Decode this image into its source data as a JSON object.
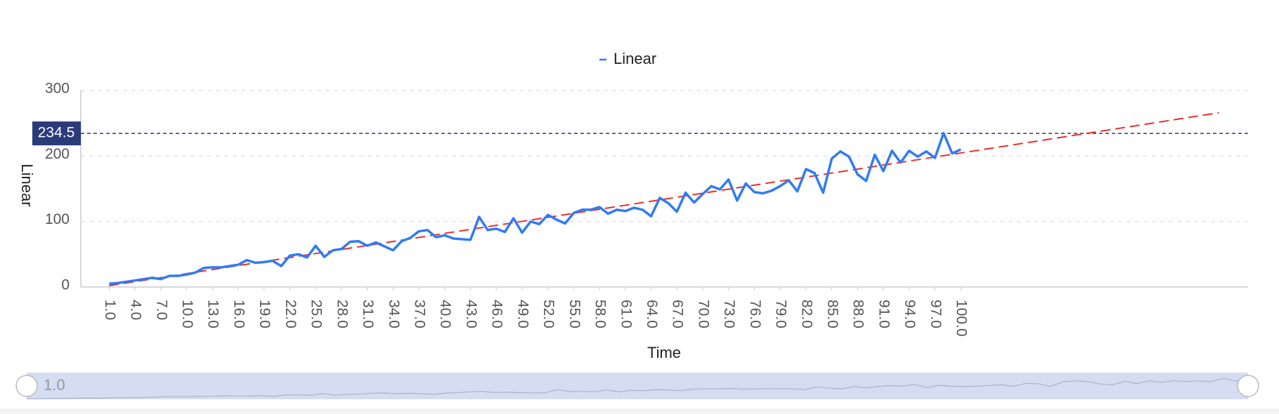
{
  "chart_data": {
    "type": "line",
    "x_label": "Time",
    "y_label": "Linear",
    "x": [
      1,
      2,
      3,
      4,
      5,
      6,
      7,
      8,
      9,
      10,
      11,
      12,
      13,
      14,
      15,
      16,
      17,
      18,
      19,
      20,
      21,
      22,
      23,
      24,
      25,
      26,
      27,
      28,
      29,
      30,
      31,
      32,
      33,
      34,
      35,
      36,
      37,
      38,
      39,
      40,
      41,
      42,
      43,
      44,
      45,
      46,
      47,
      48,
      49,
      50,
      51,
      52,
      53,
      54,
      55,
      56,
      57,
      58,
      59,
      60,
      61,
      62,
      63,
      64,
      65,
      66,
      67,
      68,
      69,
      70,
      71,
      72,
      73,
      74,
      75,
      76,
      77,
      78,
      79,
      80,
      81,
      82,
      83,
      84,
      85,
      86,
      87,
      88,
      89,
      90,
      91,
      92,
      93,
      94,
      95,
      96,
      97,
      98,
      99,
      100
    ],
    "series": [
      {
        "name": "Linear",
        "color": "#2f7bf5",
        "values": [
          5,
          6,
          8,
          10,
          12,
          14,
          12,
          17,
          17,
          19,
          22,
          29,
          30,
          30,
          32,
          34,
          41,
          37,
          38,
          40,
          32,
          48,
          50,
          45,
          63,
          46,
          56,
          58,
          69,
          70,
          63,
          68,
          62,
          56,
          70,
          75,
          85,
          87,
          76,
          79,
          74,
          73,
          72,
          107,
          87,
          89,
          84,
          105,
          83,
          100,
          96,
          110,
          103,
          97,
          113,
          118,
          118,
          122,
          112,
          118,
          116,
          121,
          118,
          108,
          136,
          128,
          115,
          144,
          129,
          142,
          154,
          149,
          164,
          132,
          158,
          145,
          143,
          147,
          154,
          163,
          146,
          180,
          174,
          144,
          196,
          207,
          199,
          172,
          162,
          202,
          177,
          208,
          190,
          208,
          199,
          207,
          197,
          235,
          204,
          210
        ]
      }
    ],
    "trendline": {
      "x": [
        1,
        130
      ],
      "values": [
        2,
        266
      ],
      "color": "#e8312a",
      "dashed": true
    },
    "markline": {
      "value": 234.5,
      "color": "#2b3a7a"
    },
    "xlim": [
      -2.3,
      133.4
    ],
    "xticks": [
      {
        "value": 1,
        "label": "1.0"
      },
      {
        "value": 4,
        "label": "4.0"
      },
      {
        "value": 7,
        "label": "7.0"
      },
      {
        "value": 10,
        "label": "10.0"
      },
      {
        "value": 13,
        "label": "13.0"
      },
      {
        "value": 16,
        "label": "16.0"
      },
      {
        "value": 19,
        "label": "19.0"
      },
      {
        "value": 22,
        "label": "22.0"
      },
      {
        "value": 25,
        "label": "25.0"
      },
      {
        "value": 28,
        "label": "28.0"
      },
      {
        "value": 31,
        "label": "31.0"
      },
      {
        "value": 34,
        "label": "34.0"
      },
      {
        "value": 37,
        "label": "37.0"
      },
      {
        "value": 40,
        "label": "40.0"
      },
      {
        "value": 43,
        "label": "43.0"
      },
      {
        "value": 46,
        "label": "46.0"
      },
      {
        "value": 49,
        "label": "49.0"
      },
      {
        "value": 52,
        "label": "52.0"
      },
      {
        "value": 55,
        "label": "55.0"
      },
      {
        "value": 58,
        "label": "58.0"
      },
      {
        "value": 61,
        "label": "61.0"
      },
      {
        "value": 64,
        "label": "64.0"
      },
      {
        "value": 67,
        "label": "67.0"
      },
      {
        "value": 70,
        "label": "70.0"
      },
      {
        "value": 73,
        "label": "73.0"
      },
      {
        "value": 76,
        "label": "76.0"
      },
      {
        "value": 79,
        "label": "79.0"
      },
      {
        "value": 82,
        "label": "82.0"
      },
      {
        "value": 85,
        "label": "85.0"
      },
      {
        "value": 88,
        "label": "88.0"
      },
      {
        "value": 91,
        "label": "91.0"
      },
      {
        "value": 94,
        "label": "94.0"
      },
      {
        "value": 97,
        "label": "97.0"
      },
      {
        "value": 100,
        "label": "100.0"
      }
    ],
    "ylim": [
      0,
      300
    ],
    "yticks": [
      0,
      100,
      200,
      300
    ],
    "grid": true,
    "legend": "top"
  }
}
